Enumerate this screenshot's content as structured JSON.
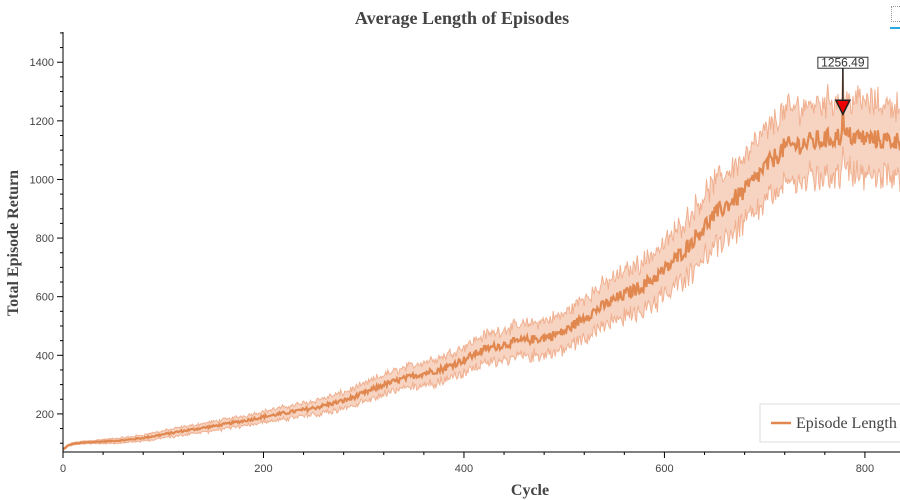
{
  "chart_data": {
    "type": "line",
    "title": "Average Length of Episodes",
    "xlabel": "Cycle",
    "ylabel": "Total Episode Return",
    "xlim": [
      0,
      835
    ],
    "ylim": [
      70,
      1510
    ],
    "x_ticks": [
      0,
      200,
      400,
      600,
      800
    ],
    "y_ticks": [
      200,
      400,
      600,
      800,
      1000,
      1200,
      1400
    ],
    "grid": false,
    "legend_position": "bottom-right",
    "series": [
      {
        "name": "Episode Length",
        "color": "#e08850",
        "band_color": "#f0b090",
        "keypoints_x": [
          0,
          5,
          10,
          20,
          40,
          60,
          80,
          100,
          120,
          150,
          180,
          200,
          220,
          250,
          280,
          300,
          320,
          350,
          380,
          400,
          420,
          450,
          480,
          500,
          520,
          550,
          580,
          600,
          620,
          650,
          680,
          700,
          720,
          750,
          780,
          800,
          835
        ],
        "keypoints_y": [
          78,
          92,
          98,
          102,
          106,
          110,
          118,
          130,
          142,
          158,
          176,
          190,
          202,
          220,
          245,
          270,
          300,
          330,
          355,
          385,
          420,
          445,
          460,
          480,
          530,
          590,
          640,
          690,
          760,
          880,
          960,
          1040,
          1110,
          1130,
          1150,
          1140,
          1130
        ],
        "band_half_width_x": [
          0,
          100,
          200,
          300,
          400,
          500,
          550,
          600,
          650,
          700,
          750,
          835
        ],
        "band_half_width": [
          3,
          12,
          18,
          30,
          45,
          60,
          75,
          90,
          110,
          120,
          130,
          120
        ]
      }
    ],
    "annotation": {
      "label": "1256.49",
      "x": 778,
      "y": 1256.49,
      "color": "#ee0000"
    }
  }
}
